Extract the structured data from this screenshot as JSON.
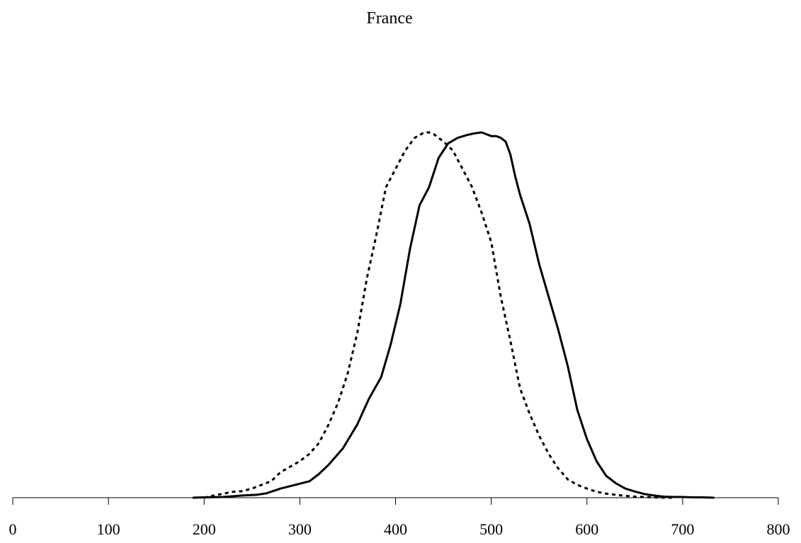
{
  "chart_data": {
    "type": "line",
    "title": "France",
    "xlabel": "",
    "ylabel": "",
    "xlim": [
      0,
      800
    ],
    "ylim": [
      0,
      1
    ],
    "x_ticks": [
      0,
      100,
      200,
      300,
      400,
      500,
      600,
      700,
      800
    ],
    "x_tick_labels": [
      "0",
      "100",
      "200",
      "300",
      "400",
      "500",
      "600",
      "700",
      "800"
    ],
    "y_axis_visible": false,
    "grid": false,
    "legend": "none",
    "series": [
      {
        "style": "solid",
        "color": "#000000",
        "x": [
          188,
          200,
          220,
          240,
          255,
          265,
          280,
          295,
          310,
          320,
          330,
          345,
          360,
          372,
          385,
          395,
          405,
          415,
          425,
          435,
          445,
          455,
          465,
          475,
          482,
          490,
          495,
          500,
          505,
          510,
          515,
          520,
          525,
          530,
          540,
          550,
          560,
          570,
          580,
          590,
          600,
          610,
          620,
          630,
          640,
          650,
          660,
          670,
          680,
          690,
          700,
          710,
          720,
          733
        ],
        "y": [
          0.0,
          0.001,
          0.002,
          0.006,
          0.008,
          0.012,
          0.025,
          0.035,
          0.045,
          0.065,
          0.09,
          0.135,
          0.2,
          0.27,
          0.33,
          0.42,
          0.53,
          0.68,
          0.8,
          0.85,
          0.93,
          0.97,
          0.985,
          0.993,
          0.997,
          1.0,
          0.995,
          0.99,
          0.99,
          0.985,
          0.975,
          0.94,
          0.88,
          0.83,
          0.75,
          0.64,
          0.55,
          0.46,
          0.36,
          0.24,
          0.16,
          0.1,
          0.06,
          0.04,
          0.025,
          0.017,
          0.01,
          0.006,
          0.003,
          0.002,
          0.002,
          0.001,
          0.001,
          0.0
        ]
      },
      {
        "style": "dotted",
        "color": "#000000",
        "x": [
          200,
          210,
          220,
          230,
          240,
          250,
          260,
          270,
          280,
          290,
          300,
          310,
          320,
          330,
          340,
          350,
          360,
          370,
          380,
          390,
          400,
          410,
          420,
          430,
          435,
          440,
          445,
          450,
          460,
          470,
          480,
          490,
          500,
          510,
          520,
          530,
          540,
          550,
          560,
          570,
          580,
          590,
          600,
          610,
          620,
          630,
          640,
          650,
          660,
          670,
          680,
          690
        ],
        "y": [
          0.0,
          0.006,
          0.011,
          0.016,
          0.018,
          0.025,
          0.035,
          0.045,
          0.07,
          0.085,
          0.1,
          0.12,
          0.15,
          0.2,
          0.26,
          0.34,
          0.45,
          0.6,
          0.72,
          0.85,
          0.9,
          0.95,
          0.985,
          1.0,
          1.0,
          0.995,
          0.985,
          0.975,
          0.95,
          0.9,
          0.85,
          0.78,
          0.7,
          0.55,
          0.43,
          0.3,
          0.23,
          0.17,
          0.12,
          0.08,
          0.05,
          0.035,
          0.025,
          0.016,
          0.011,
          0.008,
          0.005,
          0.003,
          0.002,
          0.001,
          0.0,
          0.0
        ]
      }
    ]
  }
}
